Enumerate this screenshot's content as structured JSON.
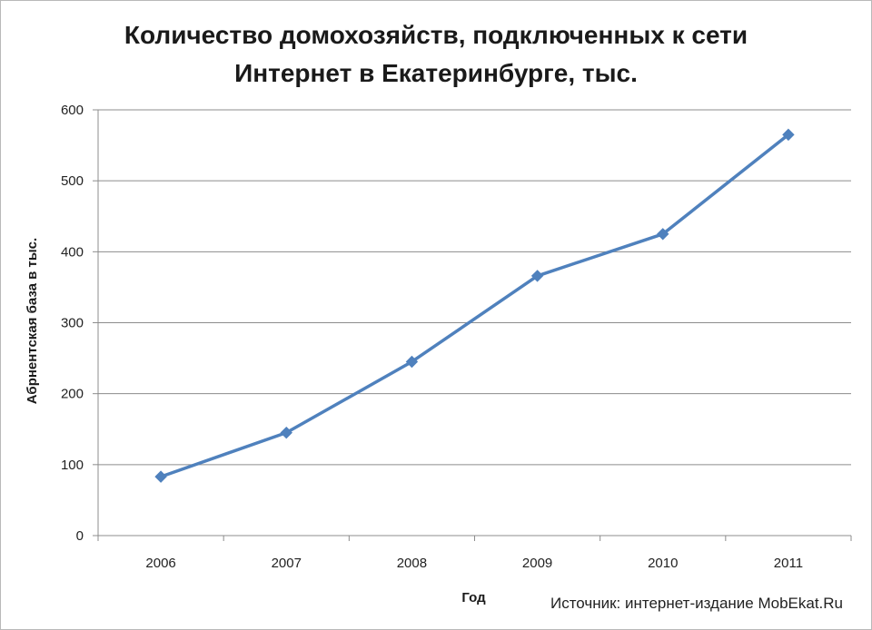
{
  "chart_data": {
    "type": "line",
    "title_lines": [
      "Количество домохозяйств, подключенных к сети",
      "Интернет в Екатеринбурге, тыс."
    ],
    "xlabel": "Год",
    "ylabel": "Абрнентская база в тыс.",
    "categories": [
      "2006",
      "2007",
      "2008",
      "2009",
      "2010",
      "2011"
    ],
    "series": [
      {
        "values": [
          83,
          145,
          245,
          366,
          425,
          565
        ]
      }
    ],
    "ylim": [
      0,
      600
    ],
    "yticks": [
      0,
      100,
      200,
      300,
      400,
      500,
      600
    ],
    "grid": true,
    "colors": {
      "line": "#4f81bd",
      "grid": "#8c8c8c",
      "axis": "#8c8c8c"
    }
  },
  "source_note": "Источник: интернет-издание MobEkat.Ru"
}
